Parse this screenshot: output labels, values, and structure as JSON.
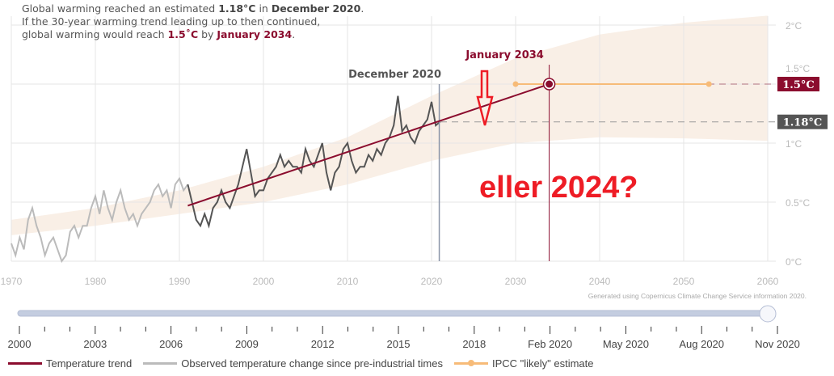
{
  "intro": {
    "line1_pre": "Global warming reached an estimated ",
    "line1_value": "1.18°C",
    "line1_mid": " in ",
    "line1_date": "December 2020",
    "line1_end": ".",
    "line2": "If the 30-year warming trend leading up to then continued,",
    "line3_pre": "global warming would reach ",
    "line3_value": "1.5˚C",
    "line3_mid": " by ",
    "line3_date": "January 2034",
    "line3_end": "."
  },
  "annotation": {
    "text": "eller 2024?",
    "color": "#ee1c25"
  },
  "credit": "Generated using Copernicus Climate Change Service information 2020.",
  "colors": {
    "trend": "#8b0c2e",
    "observed_early": "#bbbbbb",
    "observed_recent": "#555555",
    "ipcc": "#f7bb78",
    "band": "#f9efe6",
    "label_current": "#555555"
  },
  "chart_data": {
    "type": "line",
    "xlim": [
      1970,
      2060
    ],
    "ylim": [
      0,
      2
    ],
    "x_ticks": [
      "1970",
      "1980",
      "1990",
      "2000",
      "2010",
      "2020",
      "2030",
      "2040",
      "2050",
      "2060"
    ],
    "y_ticks": [
      "0°C",
      "0.5°C",
      "1°C",
      "1.5°C",
      "2°C"
    ],
    "grid": true,
    "markers": [
      {
        "label": "December 2020",
        "x": 2020.92
      },
      {
        "label": "January 2034",
        "x": 2034.0
      }
    ],
    "threshold_labels": [
      {
        "label": "1.5°C",
        "y": 1.5
      },
      {
        "label": "1.18°C",
        "y": 1.18
      }
    ],
    "observed": {
      "start": 1970.0,
      "step": 0.5,
      "trend_window_start": 1991,
      "values": [
        0.15,
        0.05,
        0.2,
        0.1,
        0.35,
        0.45,
        0.3,
        0.2,
        0.05,
        0.15,
        0.2,
        0.1,
        0.0,
        0.05,
        0.25,
        0.3,
        0.2,
        0.3,
        0.3,
        0.45,
        0.55,
        0.4,
        0.6,
        0.45,
        0.35,
        0.5,
        0.6,
        0.45,
        0.35,
        0.4,
        0.3,
        0.4,
        0.45,
        0.5,
        0.6,
        0.65,
        0.55,
        0.6,
        0.45,
        0.65,
        0.7,
        0.6,
        0.65,
        0.5,
        0.35,
        0.3,
        0.4,
        0.3,
        0.45,
        0.5,
        0.6,
        0.5,
        0.45,
        0.55,
        0.65,
        0.8,
        0.95,
        0.75,
        0.55,
        0.6,
        0.6,
        0.7,
        0.75,
        0.8,
        0.9,
        0.8,
        0.85,
        0.8,
        0.8,
        0.75,
        0.95,
        0.85,
        0.8,
        0.9,
        1.0,
        0.75,
        0.6,
        0.75,
        0.8,
        0.95,
        1.0,
        0.85,
        0.75,
        0.8,
        0.8,
        0.9,
        0.85,
        0.95,
        0.9,
        1.0,
        1.05,
        1.15,
        1.4,
        1.1,
        1.15,
        1.05,
        1.0,
        1.1,
        1.15,
        1.2,
        1.35,
        1.15,
        1.18
      ]
    },
    "trend": {
      "name": "Temperature trend",
      "x": [
        1991,
        2034
      ],
      "y": [
        0.47,
        1.5
      ]
    },
    "ipcc": {
      "name": "IPCC \"likely\" estimate",
      "x": [
        2030,
        2053
      ],
      "y": [
        1.5,
        1.5
      ]
    },
    "band": {
      "x": [
        1970,
        1980,
        1990,
        2000,
        2010,
        2020,
        2030,
        2040,
        2050,
        2060
      ],
      "lower": [
        0.22,
        0.3,
        0.4,
        0.5,
        0.65,
        0.85,
        1.0,
        1.05,
        1.04,
        1.02
      ],
      "upper": [
        0.35,
        0.45,
        0.6,
        0.8,
        1.05,
        1.4,
        1.72,
        1.92,
        2.02,
        2.08
      ]
    }
  },
  "slider": {
    "value_fraction": 1.0,
    "ticks": [
      "2000",
      "2003",
      "2006",
      "2009",
      "2012",
      "2015",
      "2018",
      "Feb 2020",
      "May 2020",
      "Aug 2020",
      "Nov 2020"
    ]
  },
  "legend": [
    {
      "label": "Temperature trend"
    },
    {
      "label": "Observed temperature change since pre-industrial times"
    },
    {
      "label": "IPCC \"likely\" estimate"
    }
  ]
}
